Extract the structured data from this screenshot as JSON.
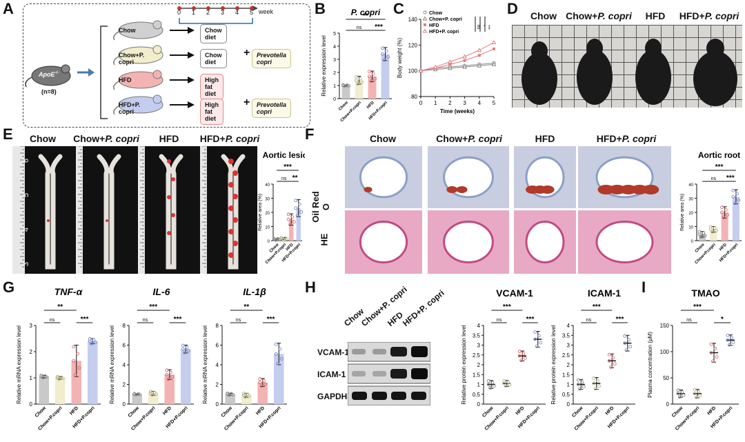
{
  "panels": {
    "A": "A",
    "B": "B",
    "C": "C",
    "D": "D",
    "E": "E",
    "F": "F",
    "G": "G",
    "H": "H",
    "I": "I"
  },
  "panelA": {
    "timeline": [
      "0",
      "1",
      "2",
      "3",
      "4",
      "5"
    ],
    "week": "week",
    "mouse": "ApoE",
    "mouse_sup": "-/-",
    "n": "(n=8)",
    "groups": [
      {
        "name": "Chow",
        "diet": "Chow diet",
        "extra": ""
      },
      {
        "name": "Chow+P. copri",
        "diet": "Chow diet",
        "extra": "Prevotella copri"
      },
      {
        "name": "HFD",
        "diet": "High fat diet",
        "extra": ""
      },
      {
        "name": "HFD+P. copri",
        "diet": "High fat diet",
        "extra": "Prevotella copri"
      }
    ],
    "plus": "+"
  },
  "group_labels": [
    "Chow",
    "Chow+P. copri",
    "HFD",
    "HFD+P. copri"
  ],
  "panelD": {
    "labels": [
      "Chow",
      "Chow+",
      "P. copri",
      "HFD",
      "HFD+",
      "P. copri"
    ]
  },
  "panelE": {
    "labels": [
      "Chow",
      "Chow+",
      "P. copri",
      "HFD",
      "HFD+",
      "P. copri"
    ],
    "ruler": [
      "6",
      "5",
      "4",
      "3"
    ]
  },
  "panelF": {
    "labels": [
      "Chow",
      "Chow+",
      "P. copri",
      "HFD",
      "HFD+",
      "P. copri"
    ],
    "rows": [
      "Oil Red O",
      "HE"
    ]
  },
  "panelH": {
    "rows": [
      "VCAM-1",
      "ICAM-1",
      "GAPDH"
    ],
    "cols": [
      "Chow",
      "Chow+P. copri",
      "HFD",
      "HFD+P. copri"
    ]
  },
  "colors": {
    "chow": "#c9c9c9",
    "chowp": "#f1edcd",
    "hfd": "#f3b3b3",
    "hfdp": "#c4cdee",
    "line_chow": "#888888",
    "line_hfd": "#e27e7e"
  },
  "chart_data": [
    {
      "id": "B",
      "type": "bar",
      "title": "P. copri",
      "title_italic": true,
      "ylabel": "Relative expression level",
      "ylim": [
        0,
        5
      ],
      "ticks": [
        0,
        1,
        2,
        3,
        4,
        5
      ],
      "categories": [
        "Chow",
        "Chow+P.copri",
        "HFD",
        "HFD+P.copri"
      ],
      "values": [
        1.0,
        1.4,
        1.7,
        3.4
      ],
      "errors": [
        0.05,
        0.3,
        0.4,
        0.5
      ],
      "sig": [
        {
          "a": 0,
          "b": 2,
          "t": "ns",
          "lvl": 0
        },
        {
          "a": 2,
          "b": 3,
          "t": "***",
          "lvl": 0
        },
        {
          "a": 0,
          "b": 3,
          "t": "**",
          "lvl": 1
        }
      ]
    },
    {
      "id": "C",
      "type": "line",
      "ylabel": "Body weight (%)",
      "xlabel": "Time (weeks)",
      "x": [
        0,
        1,
        2,
        3,
        4,
        5
      ],
      "ylim": [
        80,
        140
      ],
      "ticks": [
        80,
        100,
        120,
        140
      ],
      "series": [
        {
          "name": "Chow",
          "values": [
            100,
            102,
            103,
            104,
            105,
            106
          ]
        },
        {
          "name": "Chow+P. copri",
          "values": [
            100,
            101,
            102,
            103,
            104,
            105
          ]
        },
        {
          "name": "HFD",
          "values": [
            100,
            102,
            105,
            108,
            112,
            117
          ]
        },
        {
          "name": "HFD+P. copri",
          "values": [
            100,
            103,
            107,
            111,
            116,
            122
          ]
        }
      ],
      "sig": [
        "ns",
        "*",
        "***"
      ]
    },
    {
      "id": "E",
      "type": "bar",
      "title": "Aortic lesion",
      "title_italic": false,
      "ylabel": "Relative area (%)",
      "ylim": [
        0,
        40
      ],
      "ticks": [
        0,
        10,
        20,
        30,
        40
      ],
      "categories": [
        "Chow",
        "Chow+P.copri",
        "HFD",
        "HFD+P.copri"
      ],
      "values": [
        1.0,
        1.5,
        15,
        23
      ],
      "errors": [
        0.5,
        0.6,
        4,
        6
      ],
      "sig": [
        {
          "a": 0,
          "b": 2,
          "t": "ns",
          "lvl": 0
        },
        {
          "a": 2,
          "b": 3,
          "t": "**",
          "lvl": 0
        },
        {
          "a": 0,
          "b": 3,
          "t": "***",
          "lvl": 1
        }
      ]
    },
    {
      "id": "F",
      "type": "bar",
      "title": "Aortic root",
      "title_italic": false,
      "ylabel": "Relative area (%)",
      "ylim": [
        0,
        40
      ],
      "ticks": [
        0,
        10,
        20,
        30,
        40
      ],
      "categories": [
        "Chow",
        "Chow+P.copri",
        "HFD",
        "HFD+P.copri"
      ],
      "values": [
        4.5,
        8,
        20,
        31
      ],
      "errors": [
        2,
        2,
        4,
        5
      ],
      "sig": [
        {
          "a": 0,
          "b": 2,
          "t": "ns",
          "lvl": 0
        },
        {
          "a": 2,
          "b": 3,
          "t": "***",
          "lvl": 0
        },
        {
          "a": 0,
          "b": 3,
          "t": "***",
          "lvl": 1
        }
      ]
    },
    {
      "id": "G1",
      "type": "bar",
      "title": "TNF-α",
      "title_italic": true,
      "ylabel": "Relative mRNA expression level",
      "ylim": [
        0,
        3
      ],
      "ticks": [
        0,
        1,
        2,
        3
      ],
      "categories": [
        "Chow",
        "Chow+P.copri",
        "HFD",
        "HFD+P.copri"
      ],
      "values": [
        1.05,
        1.0,
        1.65,
        2.4
      ],
      "errors": [
        0.05,
        0.05,
        0.6,
        0.1
      ],
      "sig": [
        {
          "a": 0,
          "b": 1,
          "t": "ns",
          "lvl": 0
        },
        {
          "a": 2,
          "b": 3,
          "t": "***",
          "lvl": 0
        },
        {
          "a": 0,
          "b": 2,
          "t": "**",
          "lvl": 1
        }
      ]
    },
    {
      "id": "G2",
      "type": "bar",
      "title": "IL-6",
      "title_italic": true,
      "ylabel": "Relative mRNA expression level",
      "ylim": [
        0,
        8
      ],
      "ticks": [
        0,
        2,
        4,
        6,
        8
      ],
      "categories": [
        "Chow",
        "Chow+P.copri",
        "HFD",
        "HFD+P.copri"
      ],
      "values": [
        1.0,
        1.1,
        3.0,
        5.6
      ],
      "errors": [
        0.05,
        0.2,
        0.5,
        0.4
      ],
      "sig": [
        {
          "a": 0,
          "b": 1,
          "t": "ns",
          "lvl": 0
        },
        {
          "a": 2,
          "b": 3,
          "t": "***",
          "lvl": 0
        },
        {
          "a": 0,
          "b": 2,
          "t": "***",
          "lvl": 1
        }
      ]
    },
    {
      "id": "G3",
      "type": "bar",
      "title": "IL-1β",
      "title_italic": true,
      "ylabel": "Relative mRNA expression level",
      "ylim": [
        0,
        8
      ],
      "ticks": [
        0,
        2,
        4,
        6,
        8
      ],
      "categories": [
        "Chow",
        "Chow+P.copri",
        "HFD",
        "HFD+P.copri"
      ],
      "values": [
        1.0,
        0.9,
        2.2,
        5.1
      ],
      "errors": [
        0.1,
        0.2,
        0.4,
        1.1
      ],
      "sig": [
        {
          "a": 0,
          "b": 1,
          "t": "ns",
          "lvl": 0
        },
        {
          "a": 2,
          "b": 3,
          "t": "***",
          "lvl": 0
        },
        {
          "a": 0,
          "b": 2,
          "t": "**",
          "lvl": 1
        }
      ]
    },
    {
      "id": "H1",
      "type": "scatter",
      "title": "VCAM-1",
      "title_italic": false,
      "ylabel": "Relative protein expression level",
      "ylim": [
        0,
        4
      ],
      "ticks": [
        0,
        0.5,
        1,
        1.5,
        2,
        2.5,
        3,
        3.5,
        4
      ],
      "categories": [
        "Chow",
        "Chow+P.copri",
        "HFD",
        "HFD+P.copri"
      ],
      "values": [
        1.0,
        1.05,
        2.45,
        3.3
      ],
      "errors": [
        0.2,
        0.15,
        0.25,
        0.4
      ],
      "sig": [
        {
          "a": 0,
          "b": 1,
          "t": "ns",
          "lvl": 0
        },
        {
          "a": 2,
          "b": 3,
          "t": "***",
          "lvl": 0
        },
        {
          "a": 0,
          "b": 2,
          "t": "***",
          "lvl": 1
        }
      ]
    },
    {
      "id": "H2",
      "type": "scatter",
      "title": "ICAM-1",
      "title_italic": false,
      "ylabel": "Relative protein expression level",
      "ylim": [
        0,
        4
      ],
      "ticks": [
        0,
        0.5,
        1,
        1.5,
        2,
        2.5,
        3,
        3.5,
        4
      ],
      "categories": [
        "Chow",
        "Chow+P.copri",
        "HFD",
        "HFD+P.copri"
      ],
      "values": [
        1.0,
        1.05,
        2.2,
        3.1
      ],
      "errors": [
        0.25,
        0.3,
        0.35,
        0.4
      ],
      "sig": [
        {
          "a": 0,
          "b": 1,
          "t": "ns",
          "lvl": 0
        },
        {
          "a": 2,
          "b": 3,
          "t": "***",
          "lvl": 0
        },
        {
          "a": 0,
          "b": 2,
          "t": "***",
          "lvl": 1
        }
      ]
    },
    {
      "id": "I",
      "type": "scatter",
      "title": "TMAO",
      "title_italic": false,
      "ylabel": "Plasma concentration (μM)",
      "ylim": [
        0,
        150
      ],
      "ticks": [
        0,
        50,
        100,
        150
      ],
      "categories": [
        "Chow",
        "Chow+P.copri",
        "HFD",
        "HFD+P.copri"
      ],
      "values": [
        20,
        20,
        98,
        122
      ],
      "errors": [
        7,
        8,
        18,
        10
      ],
      "sig": [
        {
          "a": 0,
          "b": 1,
          "t": "ns",
          "lvl": 0
        },
        {
          "a": 2,
          "b": 3,
          "t": "*",
          "lvl": 0
        },
        {
          "a": 0,
          "b": 2,
          "t": "***",
          "lvl": 1
        }
      ]
    }
  ]
}
